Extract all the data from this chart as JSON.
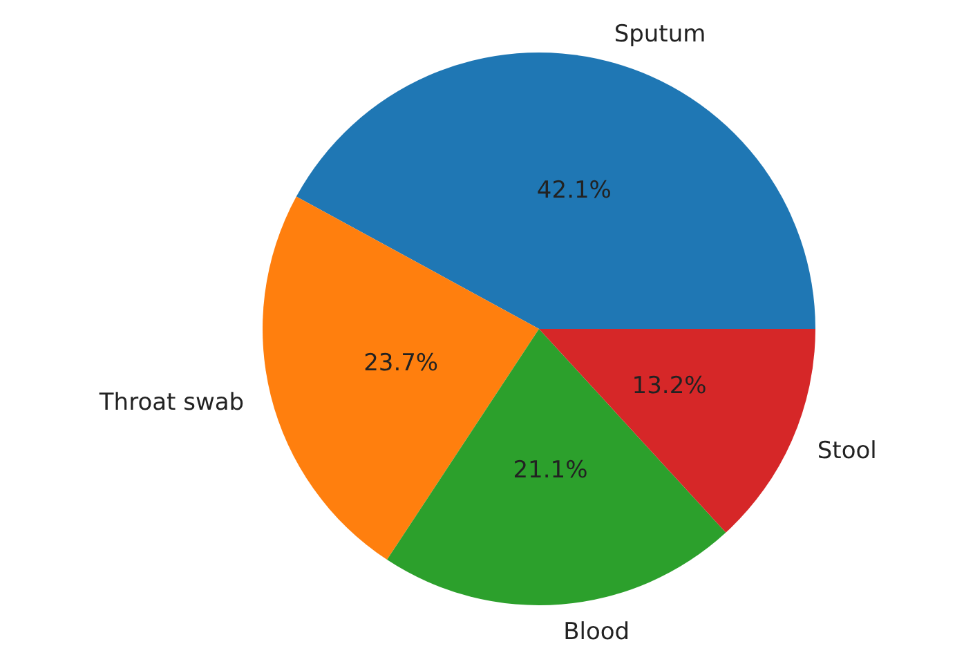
{
  "chart_data": {
    "type": "pie",
    "categories": [
      "Sputum",
      "Throat swab",
      "Blood",
      "Stool"
    ],
    "values": [
      42.1,
      23.7,
      21.1,
      13.2
    ],
    "colors": [
      "#1f77b4",
      "#ff7f0e",
      "#2ca02c",
      "#d62728"
    ],
    "value_labels": [
      "42.1%",
      "23.7%",
      "21.1%",
      "13.2%"
    ],
    "legend": false
  }
}
